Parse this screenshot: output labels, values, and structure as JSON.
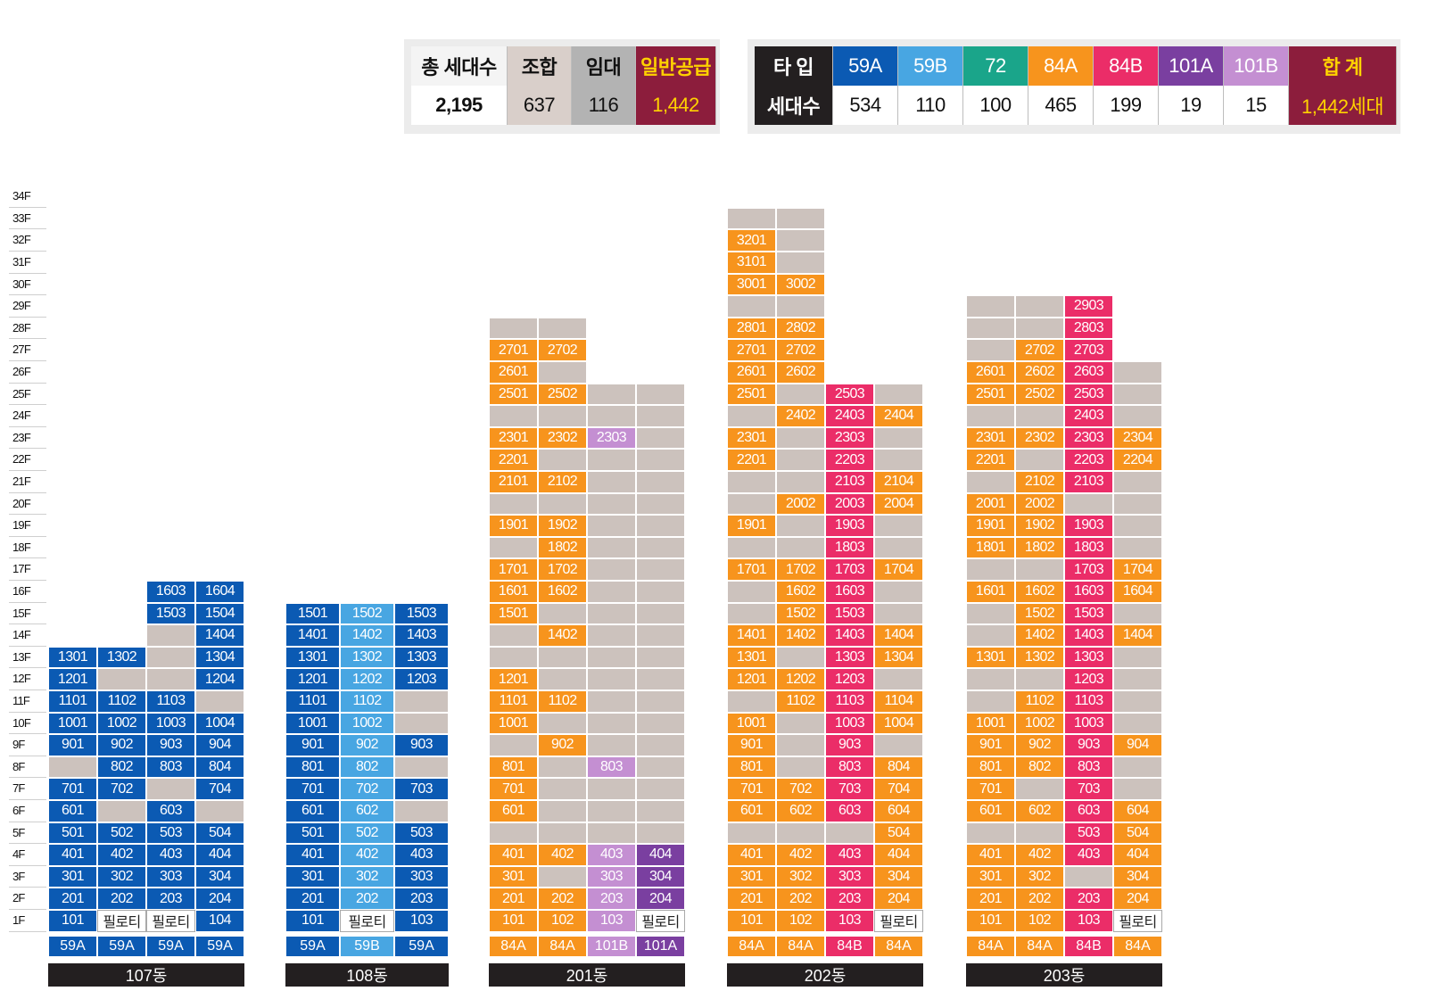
{
  "colors": {
    "59A": "#0b5ab3",
    "59B": "#48a6e2",
    "72": "#1aa58a",
    "84A": "#f7941d",
    "84B": "#eb2d68",
    "101A": "#7a3fa0",
    "101B": "#c48fd2",
    "grey": "#ccc2bd",
    "pilotis": "#ffffff",
    "dark": "#231f20",
    "maroon": "#8c1d3c",
    "rental": "#b3b3b3",
    "coop": "#d9cfca"
  },
  "summary_left": {
    "headers": [
      "총 세대수",
      "조합",
      "임대",
      "일반공급"
    ],
    "values": [
      "2,195",
      "637",
      "116",
      "1,442"
    ]
  },
  "summary_right": {
    "headers": [
      "타 입",
      "59A",
      "59B",
      "72",
      "84A",
      "84B",
      "101A",
      "101B",
      "합 계"
    ],
    "values": [
      "세대수",
      "534",
      "110",
      "100",
      "465",
      "199",
      "19",
      "15",
      "1,442세대"
    ]
  },
  "floor_labels": [
    "34F",
    "33F",
    "32F",
    "31F",
    "30F",
    "29F",
    "28F",
    "27F",
    "26F",
    "25F",
    "24F",
    "23F",
    "22F",
    "21F",
    "20F",
    "19F",
    "18F",
    "17F",
    "16F",
    "15F",
    "14F",
    "13F",
    "12F",
    "11F",
    "10F",
    "9F",
    "8F",
    "7F",
    "6F",
    "5F",
    "4F",
    "3F",
    "2F",
    "1F"
  ],
  "buildings": [
    {
      "name": "107동",
      "types": [
        "59A",
        "59A",
        "59A",
        "59A"
      ],
      "rows": [
        [
          16,
          [
            "",
            "",
            "59A:1603",
            "59A:1604"
          ]
        ],
        [
          15,
          [
            "",
            "",
            "59A:1503",
            "59A:1504"
          ]
        ],
        [
          14,
          [
            "",
            "",
            "g",
            "59A:1404"
          ]
        ],
        [
          13,
          [
            "59A:1301",
            "59A:1302",
            "g",
            "59A:1304"
          ]
        ],
        [
          12,
          [
            "59A:1201",
            "g",
            "g",
            "59A:1204"
          ]
        ],
        [
          11,
          [
            "59A:1101",
            "59A:1102",
            "59A:1103",
            "g"
          ]
        ],
        [
          10,
          [
            "59A:1001",
            "59A:1002",
            "59A:1003",
            "59A:1004"
          ]
        ],
        [
          9,
          [
            "59A:901",
            "59A:902",
            "59A:903",
            "59A:904"
          ]
        ],
        [
          8,
          [
            "g",
            "59A:802",
            "59A:803",
            "59A:804"
          ]
        ],
        [
          7,
          [
            "59A:701",
            "59A:702",
            "g",
            "59A:704"
          ]
        ],
        [
          6,
          [
            "59A:601",
            "g",
            "59A:603",
            "g"
          ]
        ],
        [
          5,
          [
            "59A:501",
            "59A:502",
            "59A:503",
            "59A:504"
          ]
        ],
        [
          4,
          [
            "59A:401",
            "59A:402",
            "59A:403",
            "59A:404"
          ]
        ],
        [
          3,
          [
            "59A:301",
            "59A:302",
            "59A:303",
            "59A:304"
          ]
        ],
        [
          2,
          [
            "59A:201",
            "59A:202",
            "59A:203",
            "59A:204"
          ]
        ],
        [
          1,
          [
            "59A:101",
            "p:필로티",
            "p:필로티",
            "59A:104"
          ]
        ]
      ]
    },
    {
      "name": "108동",
      "types": [
        "59A",
        "59B",
        "59A"
      ],
      "rows": [
        [
          15,
          [
            "59A:1501",
            "59B:1502",
            "59A:1503"
          ]
        ],
        [
          14,
          [
            "59A:1401",
            "59B:1402",
            "59A:1403"
          ]
        ],
        [
          13,
          [
            "59A:1301",
            "59B:1302",
            "59A:1303"
          ]
        ],
        [
          12,
          [
            "59A:1201",
            "59B:1202",
            "59A:1203"
          ]
        ],
        [
          11,
          [
            "59A:1101",
            "59B:1102",
            "g"
          ]
        ],
        [
          10,
          [
            "59A:1001",
            "59B:1002",
            "g"
          ]
        ],
        [
          9,
          [
            "59A:901",
            "59B:902",
            "59A:903"
          ]
        ],
        [
          8,
          [
            "59A:801",
            "59B:802",
            "g"
          ]
        ],
        [
          7,
          [
            "59A:701",
            "59B:702",
            "59A:703"
          ]
        ],
        [
          6,
          [
            "59A:601",
            "59B:602",
            "g"
          ]
        ],
        [
          5,
          [
            "59A:501",
            "59B:502",
            "59A:503"
          ]
        ],
        [
          4,
          [
            "59A:401",
            "59B:402",
            "59A:403"
          ]
        ],
        [
          3,
          [
            "59A:301",
            "59B:302",
            "59A:303"
          ]
        ],
        [
          2,
          [
            "59A:201",
            "59B:202",
            "59A:203"
          ]
        ],
        [
          1,
          [
            "59A:101",
            "p:필로티",
            "59A:103"
          ]
        ]
      ]
    },
    {
      "name": "201동",
      "types": [
        "84A",
        "84A",
        "101B",
        "101A"
      ],
      "rows": [
        [
          28,
          [
            "g",
            "g",
            "",
            ""
          ]
        ],
        [
          27,
          [
            "84A:2701",
            "84A:2702",
            "",
            ""
          ]
        ],
        [
          26,
          [
            "84A:2601",
            "g",
            "",
            ""
          ]
        ],
        [
          25,
          [
            "84A:2501",
            "84A:2502",
            "g",
            "g"
          ]
        ],
        [
          24,
          [
            "g",
            "g",
            "g",
            "g"
          ]
        ],
        [
          23,
          [
            "84A:2301",
            "84A:2302",
            "101B:2303",
            "g"
          ]
        ],
        [
          22,
          [
            "84A:2201",
            "g",
            "g",
            "g"
          ]
        ],
        [
          21,
          [
            "84A:2101",
            "84A:2102",
            "g",
            "g"
          ]
        ],
        [
          20,
          [
            "g",
            "g",
            "g",
            "g"
          ]
        ],
        [
          19,
          [
            "84A:1901",
            "84A:1902",
            "g",
            "g"
          ]
        ],
        [
          18,
          [
            "g",
            "84A:1802",
            "g",
            "g"
          ]
        ],
        [
          17,
          [
            "84A:1701",
            "84A:1702",
            "g",
            "g"
          ]
        ],
        [
          16,
          [
            "84A:1601",
            "84A:1602",
            "g",
            "g"
          ]
        ],
        [
          15,
          [
            "84A:1501",
            "g",
            "g",
            "g"
          ]
        ],
        [
          14,
          [
            "g",
            "84A:1402",
            "g",
            "g"
          ]
        ],
        [
          13,
          [
            "g",
            "g",
            "g",
            "g"
          ]
        ],
        [
          12,
          [
            "84A:1201",
            "g",
            "g",
            "g"
          ]
        ],
        [
          11,
          [
            "84A:1101",
            "84A:1102",
            "g",
            "g"
          ]
        ],
        [
          10,
          [
            "84A:1001",
            "g",
            "g",
            "g"
          ]
        ],
        [
          9,
          [
            "g",
            "84A:902",
            "g",
            "g"
          ]
        ],
        [
          8,
          [
            "84A:801",
            "g",
            "101B:803",
            "g"
          ]
        ],
        [
          7,
          [
            "84A:701",
            "g",
            "g",
            "g"
          ]
        ],
        [
          6,
          [
            "84A:601",
            "g",
            "g",
            "g"
          ]
        ],
        [
          5,
          [
            "g",
            "g",
            "g",
            "g"
          ]
        ],
        [
          4,
          [
            "84A:401",
            "84A:402",
            "101B:403",
            "101A:404"
          ]
        ],
        [
          3,
          [
            "84A:301",
            "g",
            "101B:303",
            "101A:304"
          ]
        ],
        [
          2,
          [
            "84A:201",
            "84A:202",
            "101B:203",
            "101A:204"
          ]
        ],
        [
          1,
          [
            "84A:101",
            "84A:102",
            "101B:103",
            "p:필로티"
          ]
        ]
      ]
    },
    {
      "name": "202동",
      "types": [
        "84A",
        "84A",
        "84B",
        "84A"
      ],
      "rows": [
        [
          33,
          [
            "g",
            "g",
            "",
            ""
          ]
        ],
        [
          32,
          [
            "84A:3201",
            "g",
            "",
            ""
          ]
        ],
        [
          31,
          [
            "84A:3101",
            "g",
            "",
            ""
          ]
        ],
        [
          30,
          [
            "84A:3001",
            "84A:3002",
            "",
            ""
          ]
        ],
        [
          29,
          [
            "g",
            "g",
            "",
            ""
          ]
        ],
        [
          28,
          [
            "84A:2801",
            "84A:2802",
            "",
            ""
          ]
        ],
        [
          27,
          [
            "84A:2701",
            "84A:2702",
            "",
            ""
          ]
        ],
        [
          26,
          [
            "84A:2601",
            "84A:2602",
            "",
            ""
          ]
        ],
        [
          25,
          [
            "84A:2501",
            "g",
            "84B:2503",
            "g"
          ]
        ],
        [
          24,
          [
            "g",
            "84A:2402",
            "84B:2403",
            "84A:2404"
          ]
        ],
        [
          23,
          [
            "84A:2301",
            "g",
            "84B:2303",
            "g"
          ]
        ],
        [
          22,
          [
            "84A:2201",
            "g",
            "84B:2203",
            "g"
          ]
        ],
        [
          21,
          [
            "g",
            "g",
            "84B:2103",
            "84A:2104"
          ]
        ],
        [
          20,
          [
            "g",
            "84A:2002",
            "84B:2003",
            "84A:2004"
          ]
        ],
        [
          19,
          [
            "84A:1901",
            "g",
            "84B:1903",
            "g"
          ]
        ],
        [
          18,
          [
            "g",
            "g",
            "84B:1803",
            "g"
          ]
        ],
        [
          17,
          [
            "84A:1701",
            "84A:1702",
            "84B:1703",
            "84A:1704"
          ]
        ],
        [
          16,
          [
            "g",
            "84A:1602",
            "84B:1603",
            "g"
          ]
        ],
        [
          15,
          [
            "g",
            "84A:1502",
            "84B:1503",
            "g"
          ]
        ],
        [
          14,
          [
            "84A:1401",
            "84A:1402",
            "84B:1403",
            "84A:1404"
          ]
        ],
        [
          13,
          [
            "84A:1301",
            "g",
            "84B:1303",
            "84A:1304"
          ]
        ],
        [
          12,
          [
            "84A:1201",
            "84A:1202",
            "84B:1203",
            "g"
          ]
        ],
        [
          11,
          [
            "g",
            "84A:1102",
            "84B:1103",
            "84A:1104"
          ]
        ],
        [
          10,
          [
            "84A:1001",
            "g",
            "84B:1003",
            "84A:1004"
          ]
        ],
        [
          9,
          [
            "84A:901",
            "g",
            "84B:903",
            "g"
          ]
        ],
        [
          8,
          [
            "84A:801",
            "g",
            "84B:803",
            "84A:804"
          ]
        ],
        [
          7,
          [
            "84A:701",
            "84A:702",
            "84B:703",
            "84A:704"
          ]
        ],
        [
          6,
          [
            "84A:601",
            "84A:602",
            "84B:603",
            "84A:604"
          ]
        ],
        [
          5,
          [
            "g",
            "g",
            "g",
            "84A:504"
          ]
        ],
        [
          4,
          [
            "84A:401",
            "84A:402",
            "84B:403",
            "84A:404"
          ]
        ],
        [
          3,
          [
            "84A:301",
            "84A:302",
            "84B:303",
            "84A:304"
          ]
        ],
        [
          2,
          [
            "84A:201",
            "84A:202",
            "84B:203",
            "84A:204"
          ]
        ],
        [
          1,
          [
            "84A:101",
            "84A:102",
            "84B:103",
            "p:필로티"
          ]
        ]
      ]
    },
    {
      "name": "203동",
      "types": [
        "84A",
        "84A",
        "84B",
        "84A"
      ],
      "rows": [
        [
          29,
          [
            "g",
            "g",
            "84B:2903",
            ""
          ]
        ],
        [
          28,
          [
            "g",
            "g",
            "84B:2803",
            ""
          ]
        ],
        [
          27,
          [
            "g",
            "84A:2702",
            "84B:2703",
            ""
          ]
        ],
        [
          26,
          [
            "84A:2601",
            "84A:2602",
            "84B:2603",
            "g"
          ]
        ],
        [
          25,
          [
            "84A:2501",
            "84A:2502",
            "84B:2503",
            "g"
          ]
        ],
        [
          24,
          [
            "g",
            "g",
            "84B:2403",
            "g"
          ]
        ],
        [
          23,
          [
            "84A:2301",
            "84A:2302",
            "84B:2303",
            "84A:2304"
          ]
        ],
        [
          22,
          [
            "84A:2201",
            "g",
            "84B:2203",
            "84A:2204"
          ]
        ],
        [
          21,
          [
            "g",
            "84A:2102",
            "84B:2103",
            "g"
          ]
        ],
        [
          20,
          [
            "84A:2001",
            "84A:2002",
            "g",
            "g"
          ]
        ],
        [
          19,
          [
            "84A:1901",
            "84A:1902",
            "84B:1903",
            "g"
          ]
        ],
        [
          18,
          [
            "84A:1801",
            "84A:1802",
            "84B:1803",
            "g"
          ]
        ],
        [
          17,
          [
            "g",
            "g",
            "84B:1703",
            "84A:1704"
          ]
        ],
        [
          16,
          [
            "84A:1601",
            "84A:1602",
            "84B:1603",
            "84A:1604"
          ]
        ],
        [
          15,
          [
            "g",
            "84A:1502",
            "84B:1503",
            "g"
          ]
        ],
        [
          14,
          [
            "g",
            "84A:1402",
            "84B:1403",
            "84A:1404"
          ]
        ],
        [
          13,
          [
            "84A:1301",
            "84A:1302",
            "84B:1303",
            "g"
          ]
        ],
        [
          12,
          [
            "g",
            "g",
            "84B:1203",
            "g"
          ]
        ],
        [
          11,
          [
            "g",
            "84A:1102",
            "84B:1103",
            "g"
          ]
        ],
        [
          10,
          [
            "84A:1001",
            "84A:1002",
            "84B:1003",
            "g"
          ]
        ],
        [
          9,
          [
            "84A:901",
            "84A:902",
            "84B:903",
            "84A:904"
          ]
        ],
        [
          8,
          [
            "84A:801",
            "84A:802",
            "84B:803",
            "g"
          ]
        ],
        [
          7,
          [
            "84A:701",
            "g",
            "84B:703",
            "g"
          ]
        ],
        [
          6,
          [
            "84A:601",
            "84A:602",
            "84B:603",
            "84A:604"
          ]
        ],
        [
          5,
          [
            "g",
            "g",
            "84B:503",
            "84A:504"
          ]
        ],
        [
          4,
          [
            "84A:401",
            "84A:402",
            "84B:403",
            "84A:404"
          ]
        ],
        [
          3,
          [
            "84A:301",
            "84A:302",
            "g",
            "84A:304"
          ]
        ],
        [
          2,
          [
            "84A:201",
            "84A:202",
            "84B:203",
            "84A:204"
          ]
        ],
        [
          1,
          [
            "84A:101",
            "84A:102",
            "84B:103",
            "p:필로티"
          ]
        ]
      ]
    }
  ]
}
